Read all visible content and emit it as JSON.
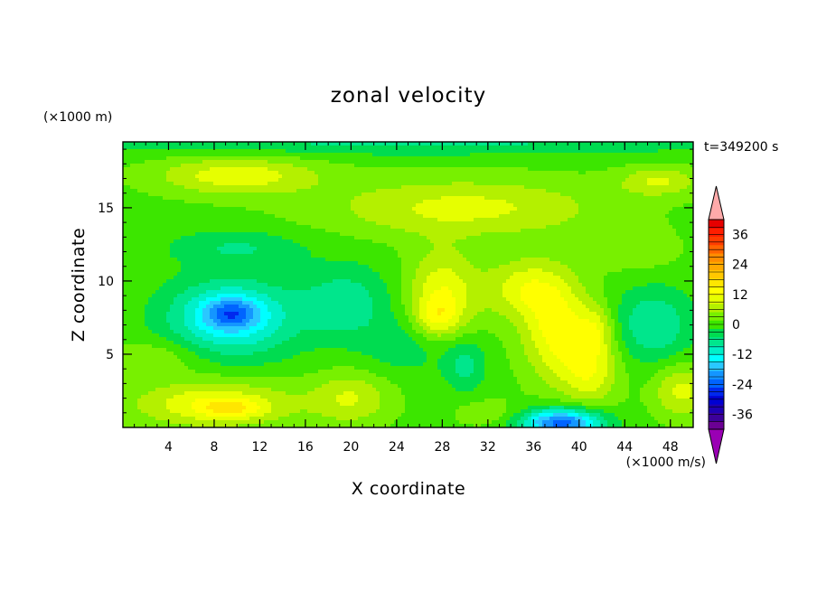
{
  "chart_data": {
    "type": "heatmap",
    "title": "zonal velocity",
    "xlabel": "X coordinate",
    "ylabel": "Z coordinate",
    "x_unit": "(×1000 m/s)",
    "y_unit": "(×1000 m)",
    "time_label": "t=349200 s",
    "xlim": [
      0,
      50
    ],
    "ylim": [
      0,
      19.5
    ],
    "x_ticks": [
      4,
      8,
      12,
      16,
      20,
      24,
      28,
      32,
      36,
      40,
      44,
      48
    ],
    "x_tick_labels": [
      "4",
      "8",
      "12",
      "16",
      "20",
      "24",
      "28",
      "32",
      "36",
      "40",
      "44",
      "48"
    ],
    "y_ticks": [
      5,
      10,
      15
    ],
    "y_tick_labels": [
      "5",
      "10",
      "15"
    ],
    "colorbar": {
      "levels": [
        -42,
        -39,
        -36,
        -33,
        -30,
        -27,
        -24,
        -21,
        -18,
        -15,
        -12,
        -9,
        -6,
        -3,
        0,
        3,
        6,
        9,
        12,
        15,
        18,
        21,
        24,
        27,
        30,
        33,
        36,
        39,
        42
      ],
      "tick_values": [
        -36,
        -24,
        -12,
        0,
        12,
        24,
        36
      ],
      "tick_labels": [
        "-36",
        "-24",
        "-12",
        "0",
        "12",
        "24",
        "36"
      ],
      "colors": [
        "#6b0094",
        "#3c009a",
        "#1e00b4",
        "#0000d2",
        "#0028ee",
        "#0064ff",
        "#1496ff",
        "#2ac8ff",
        "#00ffff",
        "#00f0c8",
        "#00e68c",
        "#00dc50",
        "#3ce600",
        "#78f000",
        "#b4f000",
        "#e6ff00",
        "#ffff00",
        "#ffe600",
        "#ffc800",
        "#ffaa00",
        "#ff8c00",
        "#ff6400",
        "#ff3c00",
        "#ff1e00",
        "#e60000"
      ],
      "under_color": "#9a00b4",
      "over_color": "#ffaaaa"
    },
    "fields": {
      "background_value": -4,
      "features": [
        {
          "x": 9.5,
          "z": 7.5,
          "sx": 5.5,
          "sz": 2.6,
          "value": -14
        },
        {
          "x": 9.5,
          "z": 7.8,
          "sx": 2.3,
          "sz": 1.0,
          "value": -10
        },
        {
          "x": 19.5,
          "z": 8.5,
          "sx": 4.0,
          "sz": 2.5,
          "value": -7
        },
        {
          "x": 46.5,
          "z": 7.0,
          "sx": 3.5,
          "sz": 2.5,
          "value": -8
        },
        {
          "x": 25,
          "z": 5.5,
          "sx": 4.0,
          "sz": 2.0,
          "value": -4
        },
        {
          "x": 8,
          "z": 1.6,
          "sx": 7.0,
          "sz": 1.6,
          "value": 10
        },
        {
          "x": 9.5,
          "z": 1.3,
          "sx": 2.8,
          "sz": 0.6,
          "value": 6
        },
        {
          "x": 20,
          "z": 2.0,
          "sx": 3.5,
          "sz": 1.8,
          "value": 7
        },
        {
          "x": 3,
          "z": 4.8,
          "sx": 4.0,
          "sz": 1.2,
          "value": 4
        },
        {
          "x": 49,
          "z": 2.5,
          "sx": 2.5,
          "sz": 1.8,
          "value": 8
        },
        {
          "x": 32,
          "z": 1.0,
          "sx": 3.0,
          "sz": 1.0,
          "value": 3
        },
        {
          "x": 28,
          "z": 9.0,
          "sx": 3.0,
          "sz": 3.0,
          "value": 10
        },
        {
          "x": 27.5,
          "z": 7.5,
          "sx": 1.8,
          "sz": 1.2,
          "value": 6
        },
        {
          "x": 35,
          "z": 9.5,
          "sx": 3.5,
          "sz": 2.0,
          "value": 8
        },
        {
          "x": 38,
          "z": 6.8,
          "sx": 3.0,
          "sz": 3.5,
          "value": 11
        },
        {
          "x": 41,
          "z": 4.0,
          "sx": 2.5,
          "sz": 2.5,
          "value": 9
        },
        {
          "x": 41.5,
          "z": 6.8,
          "sx": 1.6,
          "sz": 1.6,
          "value": 6
        },
        {
          "x": 38.5,
          "z": 0.3,
          "sx": 3.5,
          "sz": 1.0,
          "value": -22
        },
        {
          "x": 30,
          "z": 4.3,
          "sx": 1.8,
          "sz": 1.8,
          "value": -6
        },
        {
          "x": 45,
          "z": 12.0,
          "sx": 4.0,
          "sz": 1.5,
          "value": 3
        },
        {
          "x": 10,
          "z": 17.2,
          "sx": 7.0,
          "sz": 1.3,
          "value": 9
        },
        {
          "x": 30,
          "z": 15.0,
          "sx": 12.0,
          "sz": 2.0,
          "value": 8
        },
        {
          "x": 47,
          "z": 16.8,
          "sx": 3.5,
          "sz": 1.0,
          "value": 7
        },
        {
          "x": 25,
          "z": 19.6,
          "sx": 30.0,
          "sz": 1.0,
          "value": -6
        },
        {
          "x": 10,
          "z": 12.3,
          "sx": 6.0,
          "sz": 1.2,
          "value": -5
        }
      ]
    }
  }
}
